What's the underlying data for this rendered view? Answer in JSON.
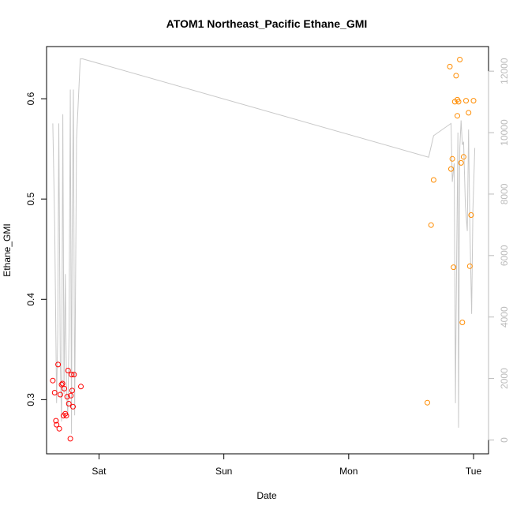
{
  "chart_data": {
    "type": "scatter",
    "title": "ATOM1 Northeast_Pacific Ethane_GMI",
    "xlabel": "Date",
    "ylabel": "Ethane_GMI",
    "x_unit": "days",
    "xlim": [
      -0.42,
      3.12
    ],
    "ylim": [
      0.246,
      0.652
    ],
    "x_ticks": [
      {
        "value": 0,
        "label": "Sat"
      },
      {
        "value": 1,
        "label": "Sun"
      },
      {
        "value": 2,
        "label": "Mon"
      },
      {
        "value": 3,
        "label": "Tue"
      }
    ],
    "y_ticks": [
      0.3,
      0.4,
      0.5,
      0.6
    ],
    "y2_ticks": [
      0,
      2000,
      4000,
      6000,
      8000,
      10000,
      12000
    ],
    "y2lim": [
      -450,
      12800
    ],
    "colors": {
      "early_points": "#ff0000",
      "late_points": "#ff8c00",
      "altitude_line": "#c8c8c8",
      "right_axis": "#bbbbbb"
    },
    "series": [
      {
        "color": "early",
        "x": [
          -0.37,
          -0.355,
          -0.345,
          -0.34,
          -0.328,
          -0.318,
          -0.31,
          -0.3,
          -0.292,
          -0.285,
          -0.278,
          -0.27,
          -0.262,
          -0.255,
          -0.248,
          -0.242,
          -0.23,
          -0.225,
          -0.22,
          -0.215,
          -0.208,
          -0.2,
          -0.145
        ],
        "y": [
          0.319,
          0.307,
          0.279,
          0.275,
          0.335,
          0.271,
          0.305,
          0.315,
          0.316,
          0.284,
          0.311,
          0.286,
          0.284,
          0.303,
          0.329,
          0.296,
          0.261,
          0.304,
          0.325,
          0.309,
          0.293,
          0.325,
          0.313
        ]
      },
      {
        "color": "late",
        "x": [
          2.63,
          2.66,
          2.68,
          2.81,
          2.82,
          2.83,
          2.84,
          2.85,
          2.86,
          2.87,
          2.87,
          2.88,
          2.89,
          2.9,
          2.91,
          2.92,
          2.94,
          2.96,
          2.97,
          2.98,
          3.0
        ],
        "y": [
          0.297,
          0.474,
          0.519,
          0.632,
          0.53,
          0.54,
          0.432,
          0.597,
          0.623,
          0.599,
          0.583,
          0.597,
          0.639,
          0.536,
          0.377,
          0.542,
          0.598,
          0.586,
          0.433,
          0.484,
          0.598
        ]
      }
    ],
    "altitude_series": {
      "axis": "right",
      "x": [
        -0.37,
        -0.355,
        -0.34,
        -0.33,
        -0.322,
        -0.31,
        -0.3,
        -0.29,
        -0.28,
        -0.27,
        -0.26,
        -0.25,
        -0.24,
        -0.23,
        -0.22,
        -0.215,
        -0.205,
        -0.195,
        -0.18,
        -0.15,
        -0.13,
        2.64,
        2.68,
        2.82,
        2.83,
        2.845,
        2.855,
        2.86,
        2.875,
        2.88,
        2.89,
        2.9,
        2.91,
        2.92,
        2.935,
        2.95,
        2.96,
        2.97,
        2.985,
        2.995,
        3.01
      ],
      "y": [
        10300,
        7000,
        1200,
        3500,
        10300,
        2500,
        600,
        10600,
        1500,
        5400,
        1600,
        800,
        3500,
        11400,
        200,
        6500,
        11400,
        800,
        9800,
        12400,
        12400,
        9200,
        9900,
        10300,
        8400,
        9000,
        1200,
        4000,
        10000,
        400,
        9500,
        10400,
        9600,
        9700,
        7600,
        6800,
        10100,
        7000,
        4100,
        7500,
        9500
      ]
    }
  }
}
